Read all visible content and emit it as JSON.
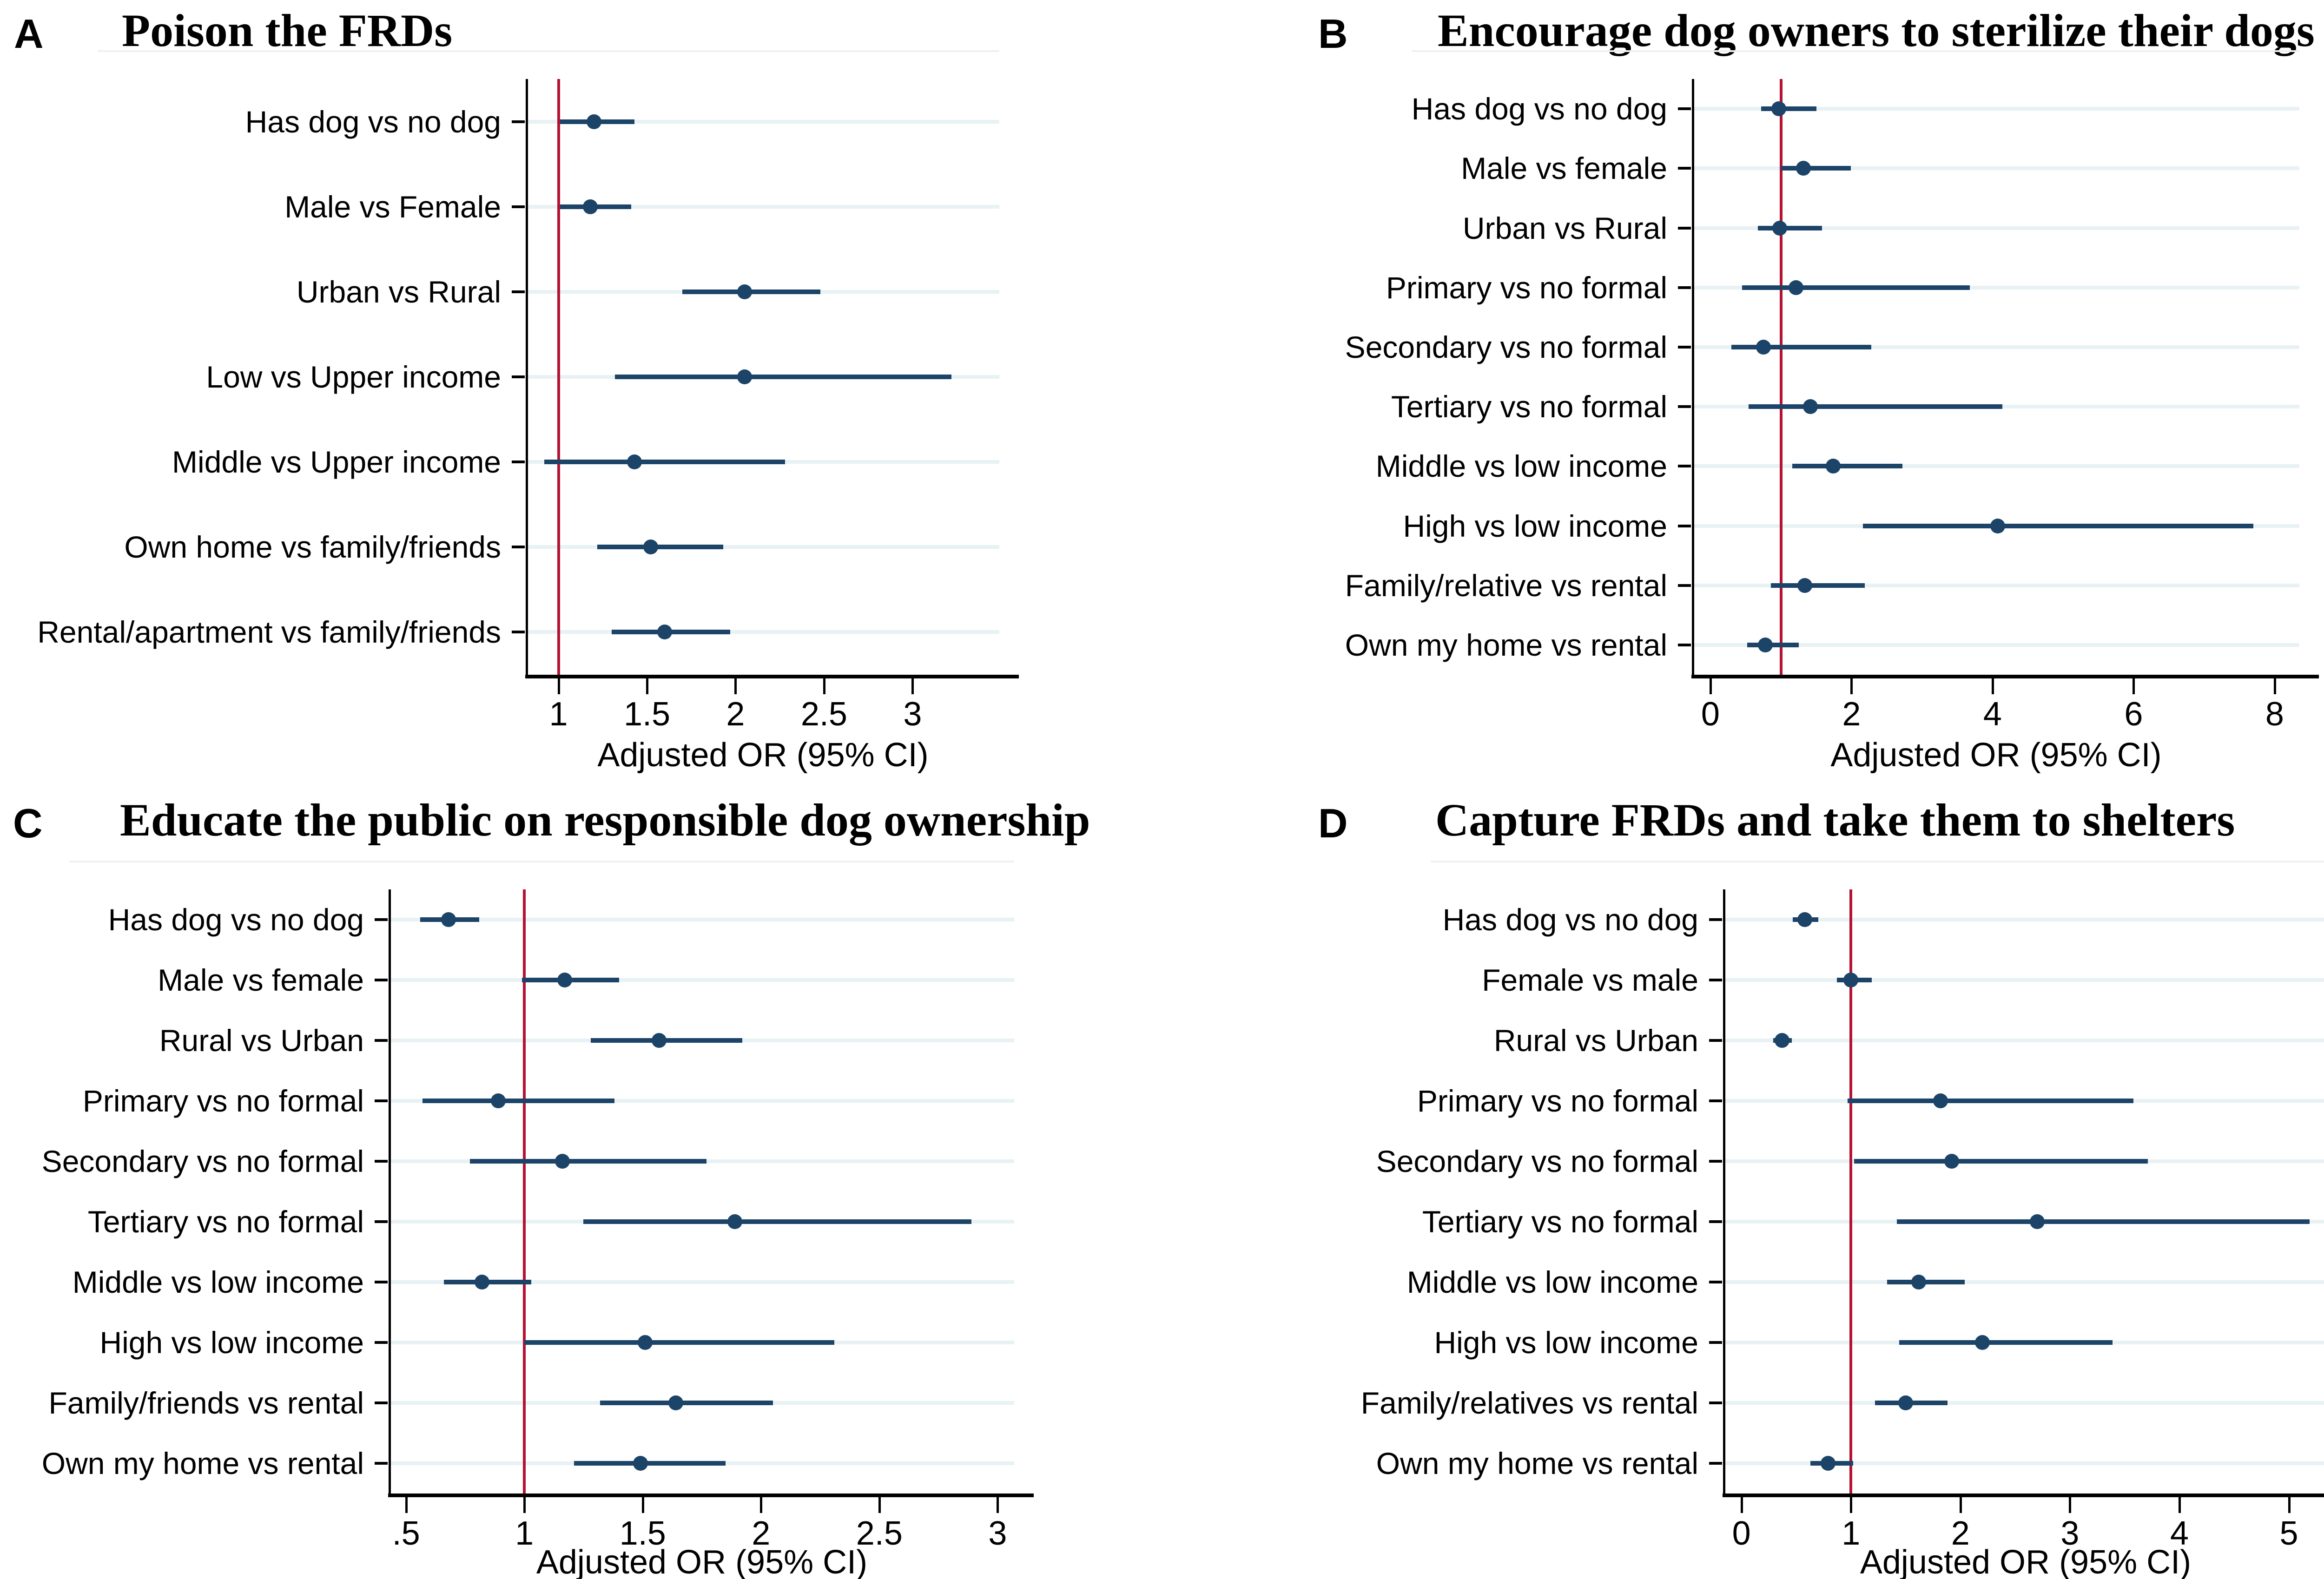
{
  "figure_title_note": "Four-panel forest plot of adjusted odds ratios",
  "colors": {
    "marker": "#1c4468",
    "ci_line": "#1c4468",
    "ref_line": "#b51233",
    "gridline": "#e8f1f4",
    "axis": "#000000",
    "background": "#ffffff"
  },
  "axis_title": "Adjusted OR (95% CI)",
  "chart_data": [
    {
      "id": "A",
      "type": "scatter",
      "variant": "forest-plot",
      "letter": "A",
      "title": "Poison the FRDs",
      "xlabel": "Adjusted OR (95% CI)",
      "xlim": [
        0.82,
        3.49
      ],
      "ref_line": 1,
      "grid": true,
      "tick_values": [
        1,
        1.5,
        2,
        2.5,
        3
      ],
      "tick_labels": [
        "1",
        "1.5",
        "2",
        "2.5",
        "3"
      ],
      "rows": [
        {
          "label": "Has dog vs no dog",
          "or": 1.2,
          "ci": [
            1.01,
            1.43
          ]
        },
        {
          "label": "Male vs Female",
          "or": 1.18,
          "ci": [
            1.01,
            1.41
          ]
        },
        {
          "label": "Urban vs Rural",
          "or": 2.05,
          "ci": [
            1.7,
            2.48
          ]
        },
        {
          "label": "Low vs Upper income",
          "or": 2.05,
          "ci": [
            1.32,
            3.22
          ]
        },
        {
          "label": "Middle vs Upper income",
          "or": 1.43,
          "ci": [
            0.92,
            2.28
          ]
        },
        {
          "label": "Own home vs family/friends",
          "or": 1.52,
          "ci": [
            1.22,
            1.93
          ]
        },
        {
          "label": "Rental/apartment vs family/friends",
          "or": 1.6,
          "ci": [
            1.3,
            1.97
          ]
        }
      ]
    },
    {
      "id": "B",
      "type": "scatter",
      "variant": "forest-plot",
      "letter": "B",
      "title": "Encourage dog owners to sterilize their dogs",
      "xlabel": "Adjusted OR (95% CI)",
      "xlim": [
        -0.25,
        8.35
      ],
      "ref_line": 1,
      "grid": true,
      "tick_values": [
        0,
        2,
        4,
        6,
        8
      ],
      "tick_labels": [
        "0",
        "2",
        "4",
        "6",
        "8"
      ],
      "rows": [
        {
          "label": "Has dog vs no dog",
          "or": 0.97,
          "ci": [
            0.72,
            1.5
          ]
        },
        {
          "label": "Male vs female",
          "or": 1.32,
          "ci": [
            1.0,
            1.99
          ]
        },
        {
          "label": "Urban vs Rural",
          "or": 0.98,
          "ci": [
            0.67,
            1.58
          ]
        },
        {
          "label": "Primary vs no formal",
          "or": 1.21,
          "ci": [
            0.45,
            3.68
          ]
        },
        {
          "label": "Secondary vs no formal",
          "or": 0.75,
          "ci": [
            0.3,
            2.28
          ]
        },
        {
          "label": "Tertiary vs no formal",
          "or": 1.42,
          "ci": [
            0.54,
            4.14
          ]
        },
        {
          "label": "Middle vs low income",
          "or": 1.74,
          "ci": [
            1.16,
            2.72
          ]
        },
        {
          "label": "High vs low income",
          "or": 4.07,
          "ci": [
            2.16,
            7.7
          ]
        },
        {
          "label": "Family/relative vs rental",
          "or": 1.34,
          "ci": [
            0.86,
            2.19
          ]
        },
        {
          "label": "Own my home vs rental",
          "or": 0.78,
          "ci": [
            0.52,
            1.25
          ]
        }
      ]
    },
    {
      "id": "C",
      "type": "scatter",
      "variant": "forest-plot",
      "letter": "C",
      "title": "Educate the public on responsible dog ownership",
      "xlabel": "Adjusted OR (95% CI)",
      "xlim": [
        0.43,
        3.07
      ],
      "ref_line": 1,
      "grid": true,
      "tick_values": [
        0.5,
        1,
        1.5,
        2,
        2.5,
        3
      ],
      "tick_labels": [
        ".5",
        "1",
        "1.5",
        "2",
        "2.5",
        "3"
      ],
      "rows": [
        {
          "label": "Has dog vs no dog",
          "or": 0.68,
          "ci": [
            0.56,
            0.81
          ]
        },
        {
          "label": "Male vs female",
          "or": 1.17,
          "ci": [
            0.99,
            1.4
          ]
        },
        {
          "label": "Rural vs Urban",
          "or": 1.57,
          "ci": [
            1.28,
            1.92
          ]
        },
        {
          "label": "Primary vs no formal",
          "or": 0.89,
          "ci": [
            0.57,
            1.38
          ]
        },
        {
          "label": "Secondary vs no formal",
          "or": 1.16,
          "ci": [
            0.77,
            1.77
          ]
        },
        {
          "label": "Tertiary vs no formal",
          "or": 1.89,
          "ci": [
            1.25,
            2.89
          ]
        },
        {
          "label": "Middle vs low income",
          "or": 0.82,
          "ci": [
            0.66,
            1.03
          ]
        },
        {
          "label": "High vs low income",
          "or": 1.51,
          "ci": [
            1.0,
            2.31
          ]
        },
        {
          "label": "Family/friends vs rental",
          "or": 1.64,
          "ci": [
            1.32,
            2.05
          ]
        },
        {
          "label": "Own my home vs rental",
          "or": 1.49,
          "ci": [
            1.21,
            1.85
          ]
        }
      ]
    },
    {
      "id": "D",
      "type": "scatter",
      "variant": "forest-plot",
      "letter": "D",
      "title": "Capture FRDs and take them to shelters",
      "xlabel": "Adjusted OR (95% CI)",
      "xlim": [
        -0.16,
        5.35
      ],
      "ref_line": 1,
      "grid": true,
      "tick_values": [
        0,
        1,
        2,
        3,
        4,
        5
      ],
      "tick_labels": [
        "0",
        "1",
        "2",
        "3",
        "4",
        "5"
      ],
      "rows": [
        {
          "label": "Has dog vs no dog",
          "or": 0.58,
          "ci": [
            0.47,
            0.7
          ]
        },
        {
          "label": "Female vs male",
          "or": 1.0,
          "ci": [
            0.87,
            1.19
          ]
        },
        {
          "label": "Rural vs Urban",
          "or": 0.37,
          "ci": [
            0.29,
            0.46
          ]
        },
        {
          "label": "Primary vs no formal",
          "or": 1.82,
          "ci": [
            0.97,
            3.58
          ]
        },
        {
          "label": "Secondary vs no formal",
          "or": 1.92,
          "ci": [
            1.03,
            3.71
          ]
        },
        {
          "label": "Tertiary vs no formal",
          "or": 2.7,
          "ci": [
            1.42,
            5.19
          ]
        },
        {
          "label": "Middle vs low income",
          "or": 1.62,
          "ci": [
            1.33,
            2.04
          ]
        },
        {
          "label": "High vs low income",
          "or": 2.2,
          "ci": [
            1.44,
            3.39
          ]
        },
        {
          "label": "Family/relatives vs rental",
          "or": 1.5,
          "ci": [
            1.22,
            1.88
          ]
        },
        {
          "label": "Own my home vs rental",
          "or": 0.79,
          "ci": [
            0.63,
            1.02
          ]
        }
      ]
    }
  ]
}
